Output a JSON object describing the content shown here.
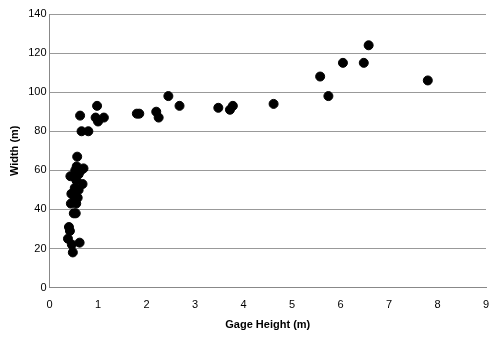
{
  "chart_data": {
    "type": "scatter",
    "xlabel": "Gage Height (m)",
    "ylabel": "Width (m)",
    "x": [
      0.38,
      0.4,
      0.42,
      0.43,
      0.44,
      0.45,
      0.46,
      0.48,
      0.5,
      0.5,
      0.52,
      0.53,
      0.54,
      0.55,
      0.55,
      0.56,
      0.57,
      0.58,
      0.6,
      0.6,
      0.62,
      0.63,
      0.65,
      0.66,
      0.68,
      0.7,
      0.8,
      0.95,
      0.98,
      1.0,
      1.12,
      1.8,
      1.85,
      2.2,
      2.25,
      2.45,
      2.68,
      3.48,
      3.72,
      3.78,
      4.62,
      5.58,
      5.75,
      6.05,
      6.48,
      6.58,
      7.8
    ],
    "values": [
      25,
      31,
      29,
      57,
      43,
      48,
      22,
      18,
      47,
      38,
      51,
      60,
      38,
      55,
      43,
      62,
      67,
      46,
      50,
      58,
      23,
      88,
      60,
      80,
      53,
      61,
      80,
      87,
      93,
      85,
      87,
      89,
      89,
      90,
      87,
      98,
      93,
      92,
      91,
      93,
      94,
      108,
      98,
      115,
      115,
      124,
      106
    ],
    "color": "#000000",
    "marker": "circle",
    "xlim": [
      0,
      9
    ],
    "xticks": [
      0,
      1,
      2,
      3,
      4,
      5,
      6,
      7,
      8,
      9
    ],
    "ylim": [
      0,
      140
    ],
    "yticks": [
      0,
      20,
      40,
      60,
      80,
      100,
      120,
      140
    ],
    "grid": true
  }
}
